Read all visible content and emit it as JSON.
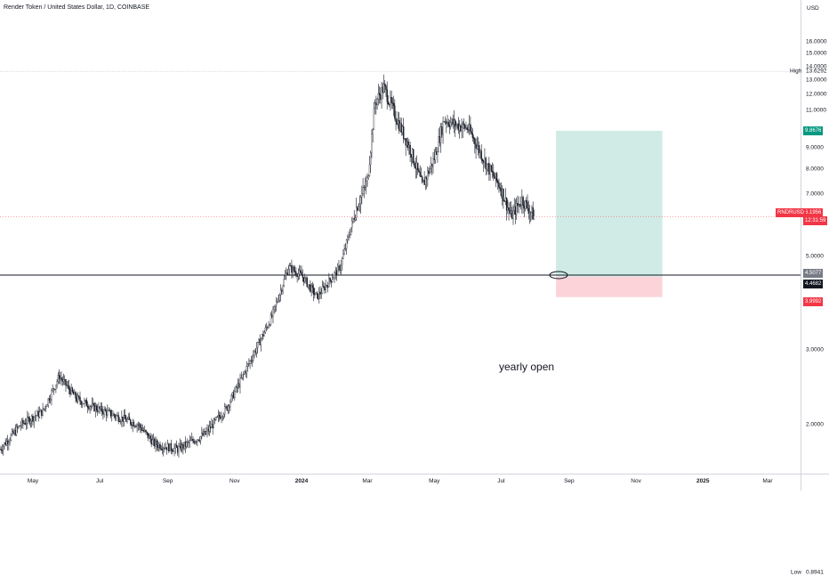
{
  "header": {
    "title": "Render Token / United States Dollar, 1D, COINBASE"
  },
  "price_scale": {
    "currency": "USD",
    "ticks": [
      "16.0000",
      "15.0000",
      "14.0000",
      "13.0000",
      "12.0000",
      "11.0000",
      "9.0000",
      "8.0000",
      "7.0000",
      "5.0000",
      "3.0000",
      "2.0000"
    ],
    "high_label": "High",
    "high_value": "13.6292",
    "low_label": "Low",
    "low_value": "0.8941",
    "target_value": "9.8676",
    "last_price": "6.1956",
    "countdown": "12:31:59",
    "symbol": "RNDRUSD",
    "yearly_open_value": "4.5077",
    "entry_value": "4.4682",
    "stop_value": "3.9992"
  },
  "time_scale": {
    "labels": [
      "May",
      "Jul",
      "Sep",
      "Nov",
      "2024",
      "Mar",
      "May",
      "Jul",
      "Sep",
      "Nov",
      "2025",
      "Mar"
    ]
  },
  "annotation": {
    "text": "yearly open"
  },
  "colors": {
    "up": "#131722",
    "down": "#131722",
    "target": "#089981",
    "stop": "#f23645",
    "profit_zone": "#d0ebe5",
    "loss_zone": "#fbd3d9"
  },
  "chart_data": {
    "type": "candlestick",
    "title": "Render Token / United States Dollar, 1D, COINBASE",
    "ylabel": "USD",
    "ylim": [
      0.8,
      16.8
    ],
    "y_scale": "log",
    "x_range": [
      "2023-04-01",
      "2025-03-31"
    ],
    "keypoints": [
      [
        "2023-04-01",
        1.75
      ],
      [
        "2023-04-20",
        2.0
      ],
      [
        "2023-05-10",
        2.15
      ],
      [
        "2023-05-25",
        2.6
      ],
      [
        "2023-06-10",
        2.3
      ],
      [
        "2023-06-25",
        2.2
      ],
      [
        "2023-07-15",
        2.1
      ],
      [
        "2023-08-05",
        2.0
      ],
      [
        "2023-08-20",
        1.8
      ],
      [
        "2023-09-10",
        1.75
      ],
      [
        "2023-10-05",
        1.9
      ],
      [
        "2023-10-25",
        2.2
      ],
      [
        "2023-11-05",
        2.5
      ],
      [
        "2023-11-20",
        3.0
      ],
      [
        "2023-12-05",
        3.6
      ],
      [
        "2023-12-20",
        4.7
      ],
      [
        "2024-01-01",
        4.5
      ],
      [
        "2024-01-15",
        4.0
      ],
      [
        "2024-02-05",
        4.7
      ],
      [
        "2024-02-20",
        6.5
      ],
      [
        "2024-03-01",
        7.5
      ],
      [
        "2024-03-08",
        11.5
      ],
      [
        "2024-03-16",
        12.5
      ],
      [
        "2024-03-28",
        10.5
      ],
      [
        "2024-04-10",
        8.8
      ],
      [
        "2024-04-20",
        7.3
      ],
      [
        "2024-05-01",
        8.5
      ],
      [
        "2024-05-10",
        10.5
      ],
      [
        "2024-05-20",
        10.2
      ],
      [
        "2024-06-01",
        10.0
      ],
      [
        "2024-06-10",
        9.0
      ],
      [
        "2024-06-20",
        8.0
      ],
      [
        "2024-06-30",
        7.3
      ],
      [
        "2024-07-10",
        6.2
      ],
      [
        "2024-07-20",
        6.8
      ],
      [
        "2024-07-31",
        6.2
      ]
    ],
    "high": 13.6292,
    "low": 0.8941,
    "last": 6.1956,
    "horizontal_line": {
      "label": "yearly open",
      "value": 4.5077
    },
    "long_position": {
      "start": "2024-08-20",
      "end": "2024-11-25",
      "entry": 4.4682,
      "target": 9.8676,
      "stop": 3.9992
    }
  }
}
